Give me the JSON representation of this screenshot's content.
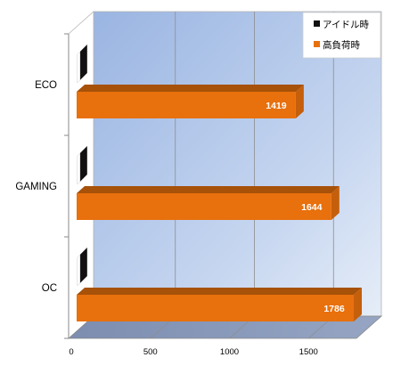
{
  "chart_data": {
    "type": "bar",
    "orientation": "horizontal",
    "categories": [
      "ECO",
      "GAMING",
      "OC"
    ],
    "series": [
      {
        "name": "アイドル時",
        "values": [
          0,
          0,
          0
        ],
        "color": "#111111"
      },
      {
        "name": "高負荷時",
        "values": [
          1419,
          1644,
          1786
        ],
        "color": "#e8700d"
      }
    ],
    "xlim": [
      0,
      2000
    ],
    "xticks": [
      0,
      500,
      1000,
      1500
    ],
    "grid": true,
    "legend_position": "top-right",
    "plot_background": "#9cb7e3",
    "floor_color": "#8696b3",
    "three_d": true
  }
}
